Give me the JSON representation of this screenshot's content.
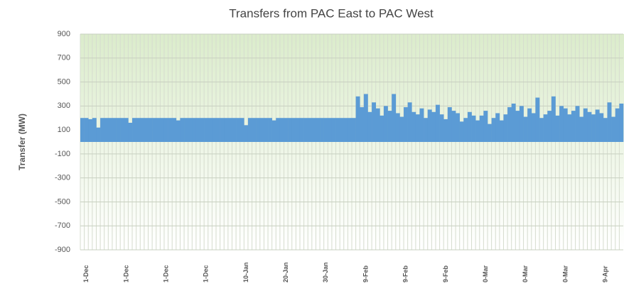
{
  "chart_data": {
    "type": "bar",
    "title": "Transfers from PAC East to PAC West",
    "y_label": "Transfer (MW)",
    "categories": [
      "1-Dec",
      null,
      null,
      null,
      null,
      null,
      null,
      null,
      null,
      null,
      "1-Dec",
      null,
      null,
      null,
      null,
      null,
      null,
      null,
      null,
      null,
      "1-Dec",
      null,
      null,
      null,
      null,
      null,
      null,
      null,
      null,
      null,
      "1-Dec",
      null,
      null,
      null,
      null,
      null,
      null,
      null,
      null,
      null,
      "10-Jan",
      null,
      null,
      null,
      null,
      null,
      null,
      null,
      null,
      null,
      "20-Jan",
      null,
      null,
      null,
      null,
      null,
      null,
      null,
      null,
      null,
      "30-Jan",
      null,
      null,
      null,
      null,
      null,
      null,
      null,
      null,
      null,
      "9-Feb",
      null,
      null,
      null,
      null,
      null,
      null,
      null,
      null,
      null,
      "9-Feb",
      null,
      null,
      null,
      null,
      null,
      null,
      null,
      null,
      null,
      "9-Feb",
      null,
      null,
      null,
      null,
      null,
      null,
      null,
      null,
      null,
      "0-Mar",
      null,
      null,
      null,
      null,
      null,
      null,
      null,
      null,
      null,
      "0-Mar",
      null,
      null,
      null,
      null,
      null,
      null,
      null,
      null,
      null,
      "0-Mar",
      null,
      null,
      null,
      null,
      null,
      null,
      null,
      null,
      null,
      "9-Apr",
      null,
      null,
      null,
      null,
      null
    ],
    "values": [
      200,
      200,
      190,
      200,
      120,
      200,
      200,
      200,
      200,
      200,
      200,
      200,
      160,
      200,
      200,
      200,
      200,
      200,
      200,
      200,
      200,
      200,
      200,
      200,
      180,
      200,
      200,
      200,
      200,
      200,
      200,
      200,
      200,
      200,
      200,
      200,
      200,
      200,
      200,
      200,
      200,
      140,
      200,
      200,
      200,
      200,
      200,
      200,
      180,
      200,
      200,
      200,
      200,
      200,
      200,
      200,
      200,
      200,
      200,
      200,
      200,
      200,
      200,
      200,
      200,
      200,
      200,
      200,
      200,
      380,
      290,
      400,
      250,
      330,
      280,
      220,
      300,
      260,
      400,
      240,
      210,
      290,
      330,
      250,
      230,
      280,
      200,
      270,
      250,
      310,
      230,
      190,
      290,
      260,
      240,
      170,
      200,
      250,
      220,
      180,
      220,
      260,
      150,
      200,
      240,
      180,
      230,
      290,
      320,
      260,
      300,
      210,
      280,
      240,
      370,
      200,
      230,
      260,
      380,
      220,
      300,
      280,
      230,
      260,
      300,
      210,
      280,
      250,
      230,
      270,
      240,
      200,
      330,
      210,
      280,
      320
    ],
    "color": "#5b9bd5",
    "ylim": [
      -900,
      900
    ],
    "yticks": [
      -900,
      -700,
      -500,
      -300,
      -100,
      100,
      300,
      500,
      700,
      900
    ],
    "grid": true
  }
}
